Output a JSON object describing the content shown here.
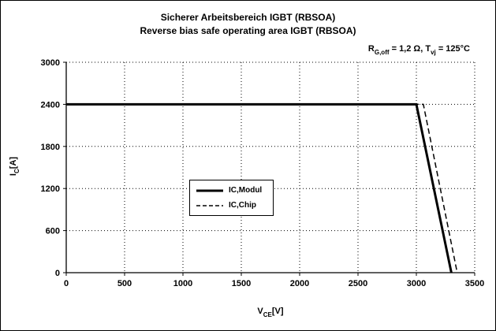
{
  "chart_data": {
    "type": "line",
    "title": "Sicherer Arbeitsbereich IGBT (RBSOA)",
    "subtitle": "Reverse bias safe operating area IGBT (RBSOA)",
    "condition": {
      "r_symbol": "R",
      "r_sub": "G,off",
      "r_value": " = 1,2 Ω,  ",
      "t_symbol": "T",
      "t_sub": "vj",
      "t_value": " = 125°C"
    },
    "xlabel": {
      "symbol": "V",
      "sub": "CE",
      "unit": "[V]"
    },
    "ylabel": {
      "symbol": "I",
      "sub": "C",
      "unit": "[A]"
    },
    "xlim": [
      0,
      3500
    ],
    "ylim": [
      0,
      3000
    ],
    "xticks": [
      0,
      500,
      1000,
      1500,
      2000,
      2500,
      3000,
      3500
    ],
    "yticks": [
      0,
      600,
      1200,
      1800,
      2400,
      3000
    ],
    "grid": true,
    "legend_position": "center",
    "axis_color": "#000000",
    "grid_color": "#000000",
    "series": [
      {
        "name": "IC,Modul",
        "line_style": "solid",
        "line_width": 3,
        "color": "#000000",
        "points": [
          [
            0,
            2400
          ],
          [
            3000,
            2400
          ],
          [
            3300,
            0
          ]
        ]
      },
      {
        "name": "IC,Chip",
        "line_style": "dashed",
        "line_width": 1.5,
        "color": "#000000",
        "points": [
          [
            0,
            2400
          ],
          [
            3060,
            2400
          ],
          [
            3350,
            0
          ]
        ]
      }
    ]
  }
}
